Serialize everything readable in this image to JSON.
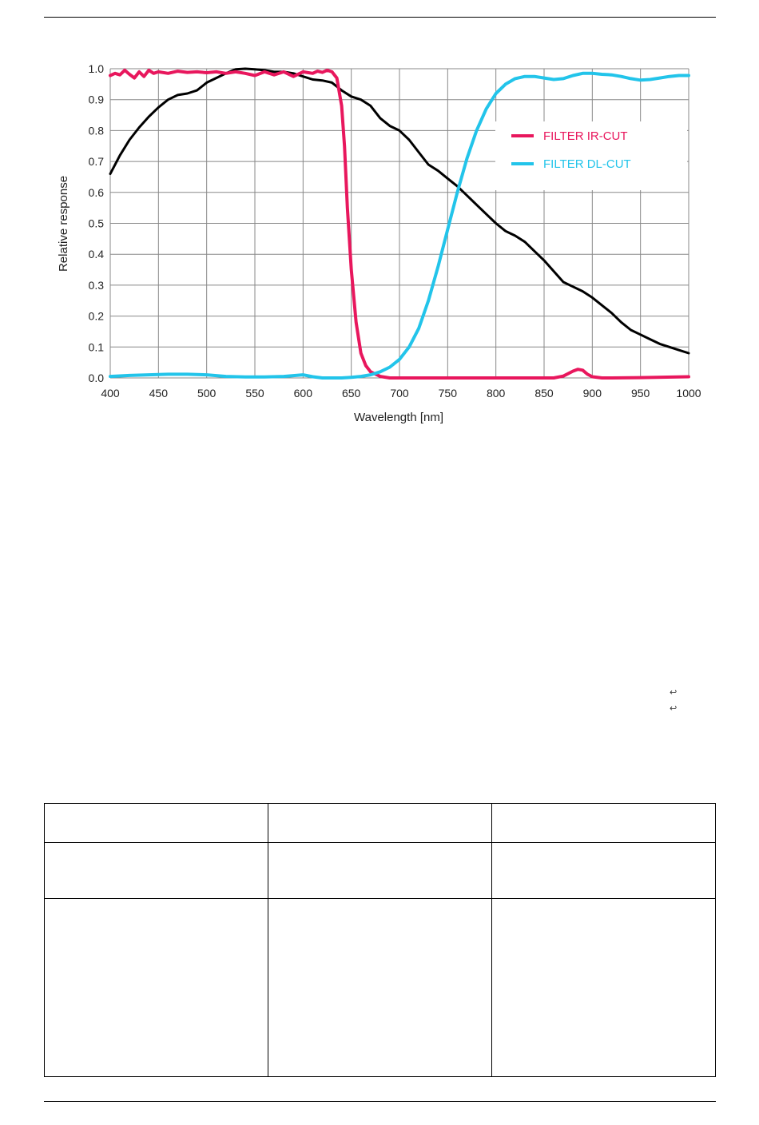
{
  "colors": {
    "ir_cut": "#e8175d",
    "dl_cut": "#22c4ea",
    "sensor": "#000000",
    "grid": "#888888"
  },
  "chart_data": {
    "type": "line",
    "xlabel": "Wavelength [nm]",
    "ylabel": "Relative response",
    "xlim": [
      400,
      1000
    ],
    "ylim": [
      0.0,
      1.0
    ],
    "xticks": [
      "400",
      "450",
      "500",
      "550",
      "600",
      "650",
      "700",
      "750",
      "800",
      "850",
      "900",
      "950",
      "1000"
    ],
    "yticks": [
      "0.0",
      "0.1",
      "0.2",
      "0.3",
      "0.4",
      "0.5",
      "0.6",
      "0.7",
      "0.8",
      "0.9",
      "1.0"
    ],
    "grid": true,
    "legend_position": "upper-right",
    "series": [
      {
        "name": "",
        "color": "#000000",
        "x": [
          400,
          410,
          420,
          430,
          440,
          450,
          460,
          470,
          480,
          490,
          500,
          510,
          520,
          530,
          540,
          550,
          560,
          570,
          580,
          590,
          600,
          610,
          620,
          630,
          640,
          650,
          660,
          670,
          680,
          690,
          700,
          710,
          720,
          730,
          740,
          750,
          760,
          770,
          780,
          790,
          800,
          810,
          820,
          830,
          840,
          850,
          860,
          870,
          880,
          890,
          900,
          910,
          920,
          930,
          940,
          950,
          960,
          970,
          980,
          990,
          1000
        ],
        "y": [
          0.66,
          0.72,
          0.77,
          0.81,
          0.845,
          0.875,
          0.9,
          0.915,
          0.92,
          0.93,
          0.955,
          0.97,
          0.985,
          0.998,
          1.0,
          0.998,
          0.995,
          0.99,
          0.99,
          0.985,
          0.975,
          0.965,
          0.962,
          0.955,
          0.93,
          0.91,
          0.9,
          0.88,
          0.84,
          0.815,
          0.8,
          0.77,
          0.73,
          0.69,
          0.67,
          0.645,
          0.62,
          0.59,
          0.56,
          0.53,
          0.5,
          0.475,
          0.46,
          0.44,
          0.41,
          0.38,
          0.345,
          0.31,
          0.295,
          0.28,
          0.26,
          0.235,
          0.21,
          0.18,
          0.155,
          0.14,
          0.125,
          0.11,
          0.1,
          0.09,
          0.08
        ]
      },
      {
        "name": "FILTER IR-CUT",
        "color": "#e8175d",
        "x": [
          400,
          405,
          410,
          415,
          420,
          425,
          430,
          435,
          440,
          445,
          450,
          460,
          470,
          480,
          490,
          500,
          510,
          520,
          530,
          540,
          550,
          560,
          570,
          580,
          590,
          600,
          610,
          615,
          620,
          625,
          630,
          635,
          640,
          643,
          646,
          650,
          655,
          660,
          665,
          670,
          680,
          690,
          700,
          750,
          800,
          850,
          860,
          870,
          880,
          885,
          890,
          895,
          900,
          910,
          920,
          950,
          1000
        ],
        "y": [
          0.978,
          0.985,
          0.98,
          0.995,
          0.982,
          0.97,
          0.99,
          0.975,
          0.995,
          0.985,
          0.99,
          0.985,
          0.992,
          0.988,
          0.99,
          0.987,
          0.99,
          0.985,
          0.99,
          0.985,
          0.978,
          0.99,
          0.98,
          0.99,
          0.975,
          0.99,
          0.985,
          0.992,
          0.988,
          0.995,
          0.99,
          0.97,
          0.88,
          0.75,
          0.55,
          0.35,
          0.18,
          0.08,
          0.04,
          0.02,
          0.005,
          0.0,
          0.0,
          0.0,
          0.0,
          0.0,
          0.0,
          0.006,
          0.022,
          0.028,
          0.025,
          0.012,
          0.004,
          0.0,
          0.0,
          0.001,
          0.004
        ]
      },
      {
        "name": "FILTER DL-CUT",
        "color": "#22c4ea",
        "x": [
          400,
          420,
          440,
          460,
          480,
          500,
          520,
          540,
          560,
          580,
          600,
          610,
          620,
          630,
          640,
          650,
          660,
          670,
          680,
          690,
          700,
          710,
          720,
          730,
          740,
          750,
          760,
          770,
          780,
          790,
          800,
          810,
          820,
          830,
          840,
          850,
          860,
          870,
          880,
          890,
          900,
          910,
          920,
          930,
          940,
          950,
          960,
          970,
          980,
          990,
          1000
        ],
        "y": [
          0.005,
          0.008,
          0.01,
          0.012,
          0.012,
          0.01,
          0.005,
          0.003,
          0.003,
          0.005,
          0.01,
          0.004,
          0.0,
          0.0,
          0.0,
          0.002,
          0.005,
          0.01,
          0.02,
          0.035,
          0.06,
          0.1,
          0.16,
          0.25,
          0.36,
          0.48,
          0.6,
          0.71,
          0.8,
          0.87,
          0.92,
          0.95,
          0.968,
          0.975,
          0.975,
          0.97,
          0.965,
          0.968,
          0.978,
          0.985,
          0.985,
          0.982,
          0.98,
          0.975,
          0.968,
          0.963,
          0.965,
          0.97,
          0.975,
          0.978,
          0.978
        ]
      }
    ]
  }
}
